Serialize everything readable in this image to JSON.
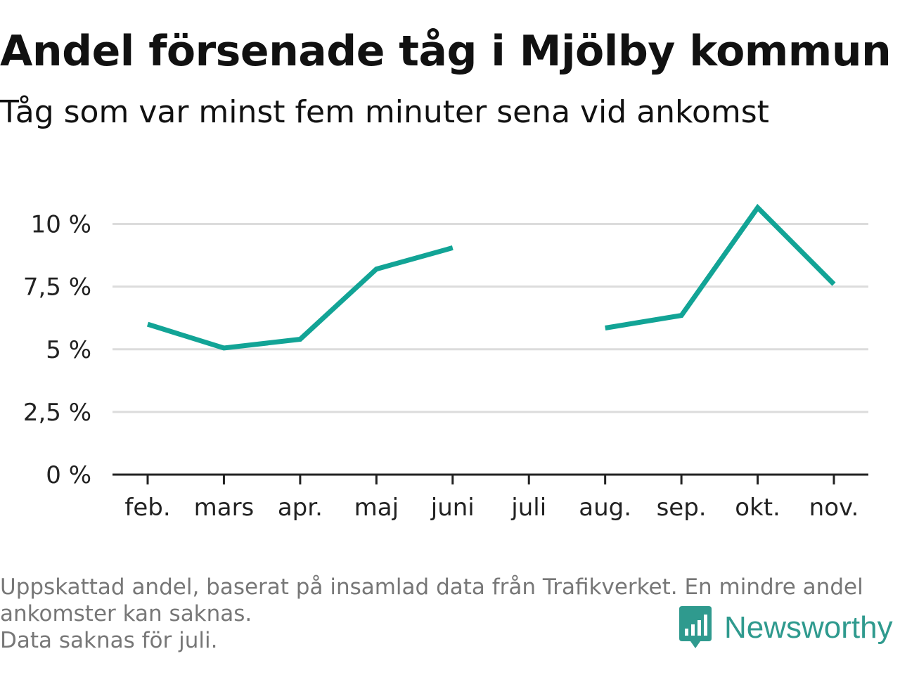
{
  "header": {
    "title": "Andel försenade tåg i Mjölby kommun",
    "subtitle": "Tåg som var minst fem minuter sena vid ankomst"
  },
  "footnote": {
    "line1": "Uppskattad andel, baserat på insamlad data från Trafikverket. En mindre andel ankomster kan saknas.",
    "line2": "Data saknas för juli."
  },
  "brand": {
    "name": "Newsworthy",
    "icon": "bar-chart-speech-bubble-icon",
    "color": "#2f9a8e"
  },
  "chart_data": {
    "type": "line",
    "title": "Andel försenade tåg i Mjölby kommun",
    "subtitle": "Tåg som var minst fem minuter sena vid ankomst",
    "xlabel": "",
    "ylabel": "",
    "categories": [
      "feb.",
      "mars",
      "apr.",
      "maj",
      "juni",
      "juli",
      "aug.",
      "sep.",
      "okt.",
      "nov."
    ],
    "series": [
      {
        "values": [
          6.0,
          5.05,
          5.4,
          8.2,
          9.05,
          null,
          5.85,
          6.35,
          10.65,
          7.6
        ],
        "color": "#12a496"
      }
    ],
    "ylim": [
      0,
      10.8
    ],
    "yticks": [
      0,
      2.5,
      5,
      7.5,
      10
    ],
    "ytick_labels": [
      "0 %",
      "2,5 %",
      "5 %",
      "7,5 %",
      "10 %"
    ],
    "grid": true,
    "legend": "none"
  }
}
